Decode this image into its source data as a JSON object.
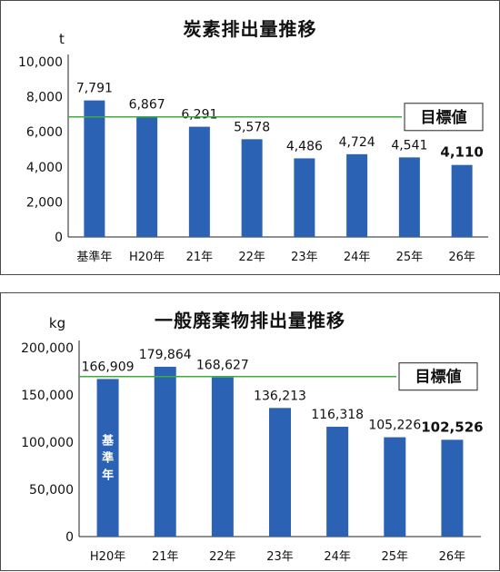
{
  "chart_data": [
    {
      "type": "bar",
      "title": "炭素排出量推移",
      "unit": "t",
      "categories": [
        "基準年",
        "H20年",
        "21年",
        "22年",
        "23年",
        "24年",
        "25年",
        "26年"
      ],
      "values": [
        7791,
        6867,
        6291,
        5578,
        4486,
        4724,
        4541,
        4110
      ],
      "value_labels": [
        "7,791",
        "6,867",
        "6,291",
        "5,578",
        "4,486",
        "4,724",
        "4,541",
        "4,110"
      ],
      "ylim": [
        0,
        10000
      ],
      "yticks": [
        0,
        2000,
        4000,
        6000,
        8000,
        10000
      ],
      "ytick_labels": [
        "0",
        "2,000",
        "4,000",
        "6,000",
        "8,000",
        "10,000"
      ],
      "target": {
        "label": "目標値",
        "value": 6850
      },
      "grid": false,
      "colors": {
        "bar": "#2b62b4",
        "target_line": "#3cae3c"
      }
    },
    {
      "type": "bar",
      "title": "一般廃棄物排出量推移",
      "unit": "kg",
      "categories": [
        "H20年",
        "21年",
        "22年",
        "23年",
        "24年",
        "25年",
        "26年"
      ],
      "values": [
        166909,
        179864,
        168627,
        136213,
        116318,
        105226,
        102526
      ],
      "value_labels": [
        "166,909",
        "179,864",
        "168,627",
        "136,213",
        "116,318",
        "105,226",
        "102,526"
      ],
      "baseline_bar_label": "基準年",
      "ylim": [
        0,
        200000
      ],
      "yticks": [
        0,
        50000,
        100000,
        150000,
        200000
      ],
      "ytick_labels": [
        "0",
        "50,000",
        "100,000",
        "150,000",
        "200,000"
      ],
      "target": {
        "label": "目標値",
        "value": 169500
      },
      "grid": false,
      "colors": {
        "bar": "#2b62b4",
        "target_line": "#3cae3c"
      }
    }
  ]
}
